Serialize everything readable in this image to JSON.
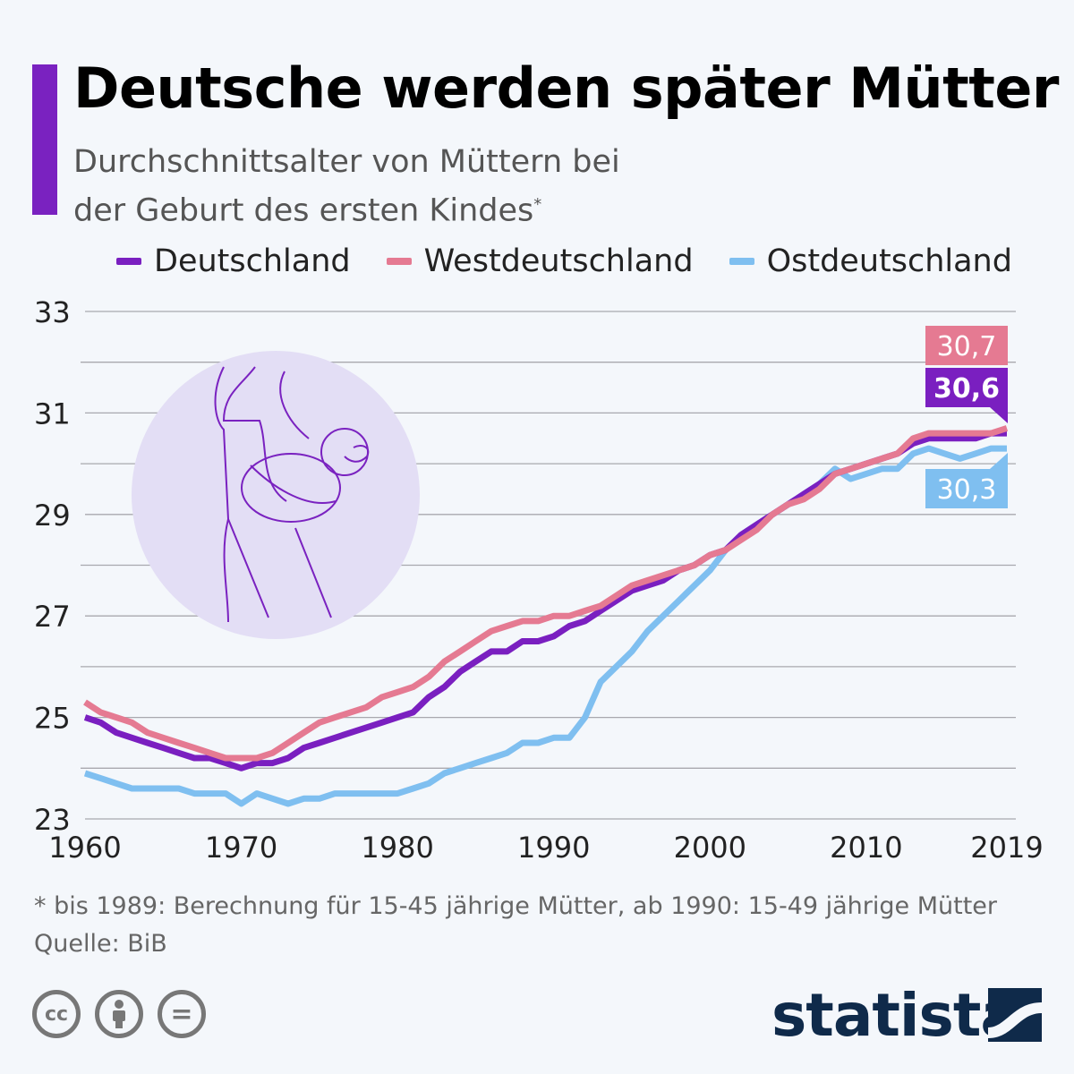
{
  "title": "Deutsche werden später Mütter",
  "subtitle_line1": "Durchschnittsalter von Müttern bei",
  "subtitle_line2": "der Geburt des ersten Kindes",
  "subtitle_marker": "*",
  "footnote": "* bis 1989: Berechnung für 15-45 jährige Mütter, ab 1990: 15-49 jährige Mütter",
  "source": "Quelle: BiB",
  "brand": "statista",
  "license_icons": [
    "cc-icon",
    "attribution-icon",
    "no-derivatives-icon"
  ],
  "license_labels": {
    "cc": "cc",
    "nd": "="
  },
  "chart_data": {
    "type": "line",
    "title": "Deutsche werden später Mütter",
    "xlabel": "",
    "ylabel": "",
    "xlim": [
      1960,
      2019
    ],
    "ylim": [
      23,
      33
    ],
    "x_ticks": [
      "1960",
      "1970",
      "1980",
      "1990",
      "2000",
      "2010",
      "2019"
    ],
    "y_ticks": [
      "23",
      "25",
      "27",
      "29",
      "31",
      "33"
    ],
    "grid": true,
    "legend_position": "top",
    "x": [
      1960,
      1961,
      1962,
      1963,
      1964,
      1965,
      1966,
      1967,
      1968,
      1969,
      1970,
      1971,
      1972,
      1973,
      1974,
      1975,
      1976,
      1977,
      1978,
      1979,
      1980,
      1981,
      1982,
      1983,
      1984,
      1985,
      1986,
      1987,
      1988,
      1989,
      1990,
      1991,
      1992,
      1993,
      1994,
      1995,
      1996,
      1997,
      1998,
      1999,
      2000,
      2001,
      2002,
      2003,
      2004,
      2005,
      2006,
      2007,
      2008,
      2009,
      2010,
      2011,
      2012,
      2013,
      2014,
      2015,
      2016,
      2017,
      2018,
      2019
    ],
    "series": [
      {
        "name": "Deutschland",
        "color": "#7a1fc0",
        "end_label": "30,6",
        "values": [
          25.0,
          24.9,
          24.7,
          24.6,
          24.5,
          24.4,
          24.3,
          24.2,
          24.2,
          24.1,
          24.0,
          24.1,
          24.1,
          24.2,
          24.4,
          24.5,
          24.6,
          24.7,
          24.8,
          24.9,
          25.0,
          25.1,
          25.4,
          25.6,
          25.9,
          26.1,
          26.3,
          26.3,
          26.5,
          26.5,
          26.6,
          26.8,
          26.9,
          27.1,
          27.3,
          27.5,
          27.6,
          27.7,
          27.9,
          28.0,
          28.2,
          28.3,
          28.6,
          28.8,
          29.0,
          29.2,
          29.4,
          29.6,
          29.8,
          29.9,
          30.0,
          30.1,
          30.2,
          30.4,
          30.5,
          30.5,
          30.5,
          30.5,
          30.6,
          30.6
        ]
      },
      {
        "name": "Westdeutschland",
        "color": "#e57a92",
        "end_label": "30,7",
        "values": [
          25.3,
          25.1,
          25.0,
          24.9,
          24.7,
          24.6,
          24.5,
          24.4,
          24.3,
          24.2,
          24.2,
          24.2,
          24.3,
          24.5,
          24.7,
          24.9,
          25.0,
          25.1,
          25.2,
          25.4,
          25.5,
          25.6,
          25.8,
          26.1,
          26.3,
          26.5,
          26.7,
          26.8,
          26.9,
          26.9,
          27.0,
          27.0,
          27.1,
          27.2,
          27.4,
          27.6,
          27.7,
          27.8,
          27.9,
          28.0,
          28.2,
          28.3,
          28.5,
          28.7,
          29.0,
          29.2,
          29.3,
          29.5,
          29.8,
          29.9,
          30.0,
          30.1,
          30.2,
          30.5,
          30.6,
          30.6,
          30.6,
          30.6,
          30.6,
          30.7
        ]
      },
      {
        "name": "Ostdeutschland",
        "color": "#7fbff0",
        "end_label": "30,3",
        "values": [
          23.9,
          23.8,
          23.7,
          23.6,
          23.6,
          23.6,
          23.6,
          23.5,
          23.5,
          23.5,
          23.3,
          23.5,
          23.4,
          23.3,
          23.4,
          23.4,
          23.5,
          23.5,
          23.5,
          23.5,
          23.5,
          23.6,
          23.7,
          23.9,
          24.0,
          24.1,
          24.2,
          24.3,
          24.5,
          24.5,
          24.6,
          24.6,
          25.0,
          25.7,
          26.0,
          26.3,
          26.7,
          27.0,
          27.3,
          27.6,
          27.9,
          28.3,
          28.6,
          28.8,
          29.0,
          29.2,
          29.4,
          29.6,
          29.9,
          29.7,
          29.8,
          29.9,
          29.9,
          30.2,
          30.3,
          30.2,
          30.1,
          30.2,
          30.3,
          30.3
        ]
      }
    ]
  }
}
